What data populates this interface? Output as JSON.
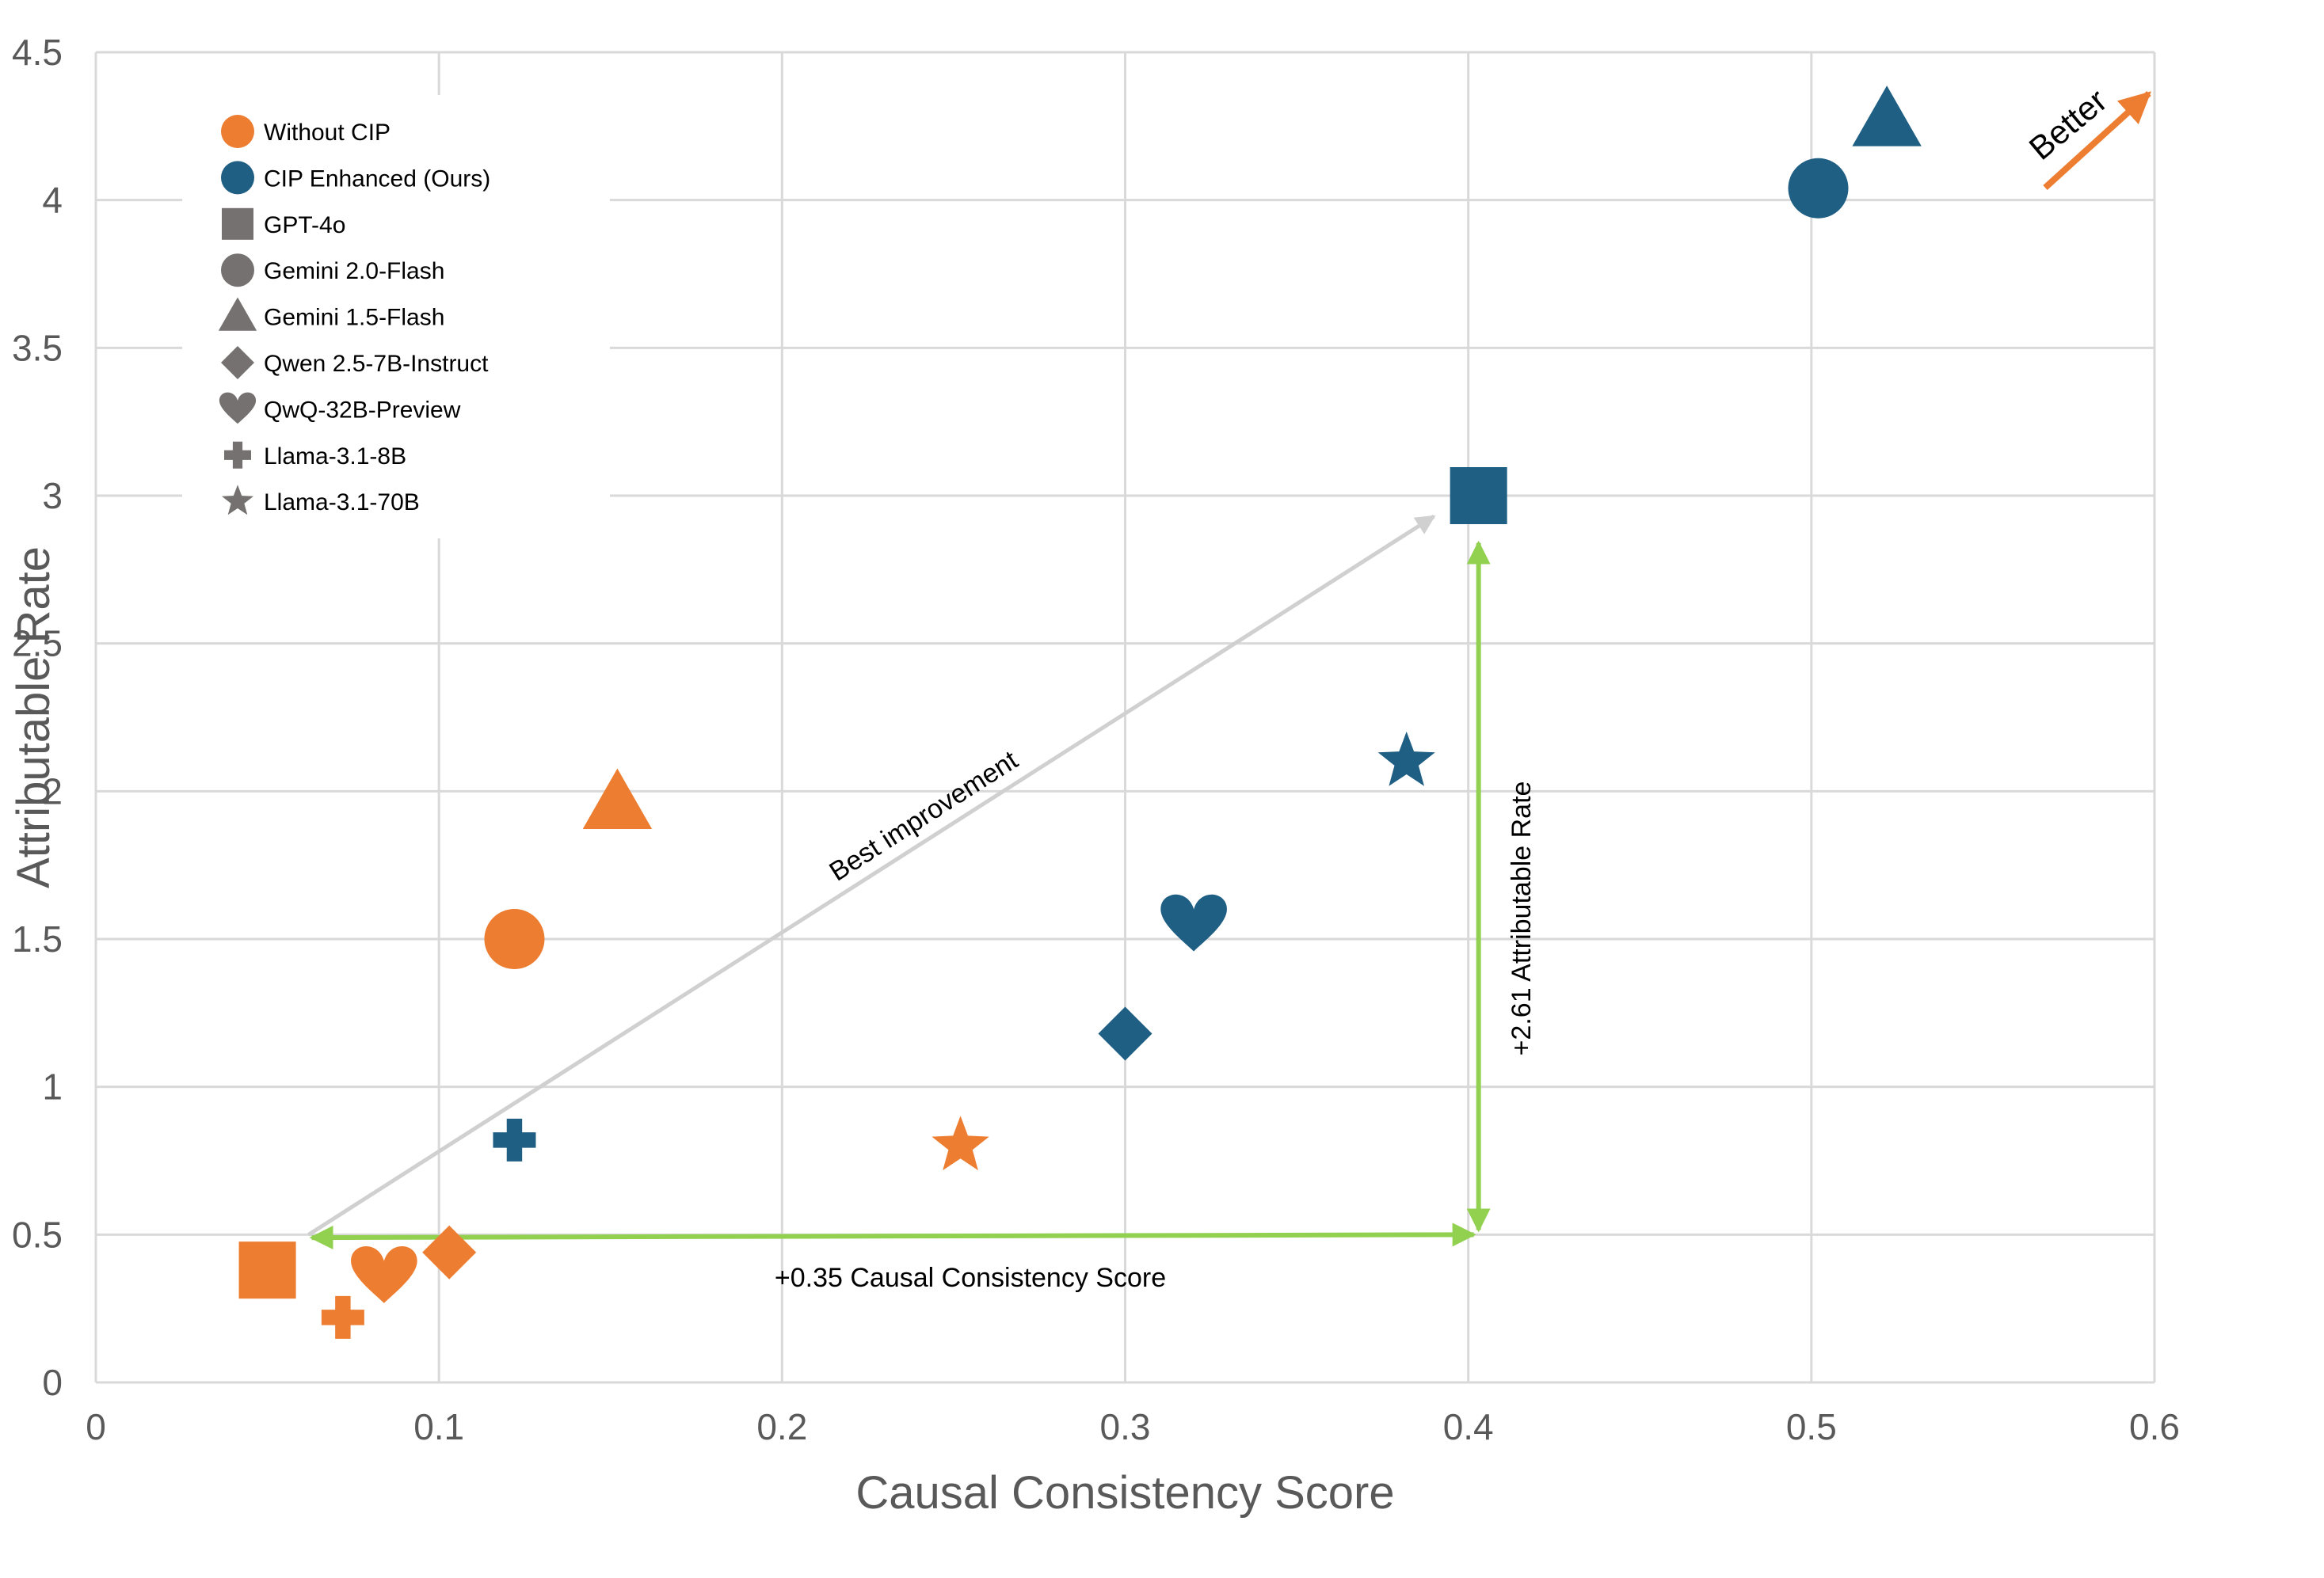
{
  "chart_data": {
    "type": "scatter",
    "xlabel": "Causal Consistency Score",
    "ylabel": "Attributable Rate",
    "xlim": [
      0,
      0.6
    ],
    "ylim": [
      0,
      4.5
    ],
    "xticks": [
      "0",
      "0.1",
      "0.2",
      "0.3",
      "0.4",
      "0.5",
      "0.6"
    ],
    "yticks": [
      "0",
      "0.5",
      "1",
      "1.5",
      "2",
      "2.5",
      "3",
      "3.5",
      "4",
      "4.5"
    ],
    "grid": true,
    "legend_position": "top-left",
    "groups": [
      {
        "name": "Without CIP",
        "color": "#ED7D31"
      },
      {
        "name": "CIP Enhanced (Ours)",
        "color": "#1F5F84"
      }
    ],
    "models": [
      {
        "name": "GPT-4o",
        "marker": "square"
      },
      {
        "name": "Gemini 2.0-Flash",
        "marker": "circle"
      },
      {
        "name": "Gemini 1.5-Flash",
        "marker": "triangle"
      },
      {
        "name": "Qwen 2.5-7B-Instruct",
        "marker": "diamond"
      },
      {
        "name": "QwQ-32B-Preview",
        "marker": "heart"
      },
      {
        "name": "Llama-3.1-8B",
        "marker": "plus"
      },
      {
        "name": "Llama-3.1-70B",
        "marker": "star"
      }
    ],
    "points": [
      {
        "model": "GPT-4o",
        "group": "Without CIP",
        "x": 0.05,
        "y": 0.38
      },
      {
        "model": "GPT-4o",
        "group": "CIP Enhanced (Ours)",
        "x": 0.403,
        "y": 3.0
      },
      {
        "model": "Gemini 2.0-Flash",
        "group": "Without CIP",
        "x": 0.122,
        "y": 1.5
      },
      {
        "model": "Gemini 2.0-Flash",
        "group": "CIP Enhanced (Ours)",
        "x": 0.502,
        "y": 4.04
      },
      {
        "model": "Gemini 1.5-Flash",
        "group": "Without CIP",
        "x": 0.152,
        "y": 1.96
      },
      {
        "model": "Gemini 1.5-Flash",
        "group": "CIP Enhanced (Ours)",
        "x": 0.522,
        "y": 4.27
      },
      {
        "model": "Qwen 2.5-7B-Instruct",
        "group": "Without CIP",
        "x": 0.103,
        "y": 0.44
      },
      {
        "model": "Qwen 2.5-7B-Instruct",
        "group": "CIP Enhanced (Ours)",
        "x": 0.3,
        "y": 1.18
      },
      {
        "model": "QwQ-32B-Preview",
        "group": "Without CIP",
        "x": 0.084,
        "y": 0.36
      },
      {
        "model": "QwQ-32B-Preview",
        "group": "CIP Enhanced (Ours)",
        "x": 0.32,
        "y": 1.55
      },
      {
        "model": "Llama-3.1-8B",
        "group": "Without CIP",
        "x": 0.072,
        "y": 0.22
      },
      {
        "model": "Llama-3.1-8B",
        "group": "CIP Enhanced (Ours)",
        "x": 0.122,
        "y": 0.82
      },
      {
        "model": "Llama-3.1-70B",
        "group": "Without CIP",
        "x": 0.252,
        "y": 0.8
      },
      {
        "model": "Llama-3.1-70B",
        "group": "CIP Enhanced (Ours)",
        "x": 0.382,
        "y": 2.1
      }
    ],
    "annotations": {
      "best_improvement": {
        "text": "Best improvement",
        "from": [
          0.062,
          0.5
        ],
        "to": [
          0.39,
          2.93
        ]
      },
      "x_gain": {
        "text": "+0.35 Causal Consistency Score",
        "from": [
          0.062,
          0.49
        ],
        "to": [
          0.403,
          0.5
        ]
      },
      "y_gain": {
        "text": "+2.61 Attributable Rate",
        "from": [
          0.403,
          0.5
        ],
        "to": [
          0.403,
          2.84
        ]
      },
      "better": {
        "text": "Better"
      }
    },
    "colors": {
      "without_cip": "#ED7D31",
      "cip_enhanced": "#1F5F84",
      "legend_gray": "#767171",
      "gain_arrow": "#92D050",
      "improvement_arrow": "#D0D0D0",
      "grid": "#D9D9D9"
    }
  }
}
